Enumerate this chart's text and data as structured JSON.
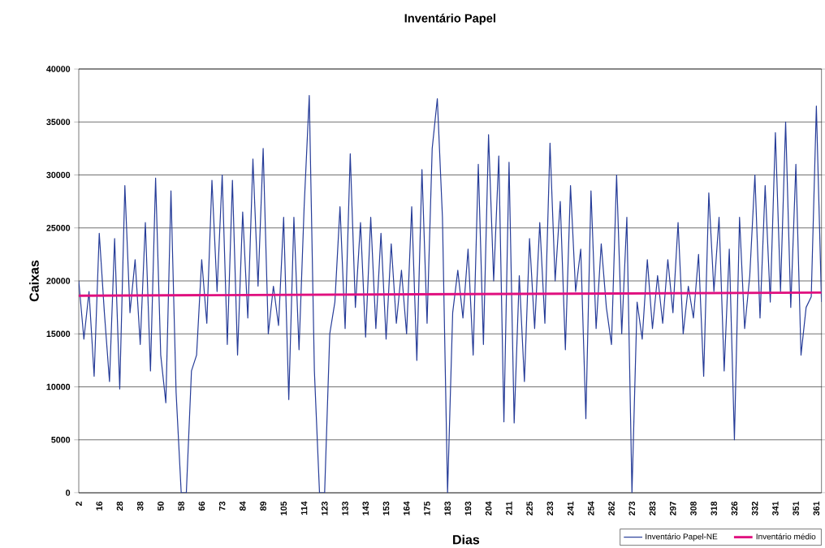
{
  "chart_data": {
    "type": "line",
    "title": "Inventário Papel",
    "xlabel": "Dias",
    "ylabel": "Caixas",
    "categories": [
      "2",
      null,
      null,
      null,
      "16",
      null,
      null,
      null,
      "28",
      null,
      null,
      null,
      "38",
      null,
      null,
      null,
      "50",
      null,
      null,
      null,
      "58",
      null,
      null,
      null,
      "66",
      null,
      null,
      null,
      "73",
      null,
      null,
      null,
      "84",
      null,
      null,
      null,
      "89",
      null,
      null,
      null,
      "105",
      null,
      null,
      null,
      "114",
      null,
      null,
      null,
      "123",
      null,
      null,
      null,
      "133",
      null,
      null,
      null,
      "143",
      null,
      null,
      null,
      "153",
      null,
      null,
      null,
      "164",
      null,
      null,
      null,
      "175",
      null,
      null,
      null,
      "183",
      null,
      null,
      null,
      "193",
      null,
      null,
      null,
      "204",
      null,
      null,
      null,
      "211",
      null,
      null,
      null,
      "225",
      null,
      null,
      null,
      "233",
      null,
      null,
      null,
      "241",
      null,
      null,
      null,
      "254",
      null,
      null,
      null,
      "262",
      null,
      null,
      null,
      "273",
      null,
      null,
      null,
      "283",
      null,
      null,
      null,
      "297",
      null,
      null,
      null,
      "308",
      null,
      null,
      null,
      "318",
      null,
      null,
      null,
      "326",
      null,
      null,
      null,
      "332",
      null,
      null,
      null,
      "341",
      null,
      null,
      null,
      "351",
      null,
      null,
      null,
      "361",
      null
    ],
    "series": [
      {
        "name": "Inventário Papel-NE",
        "color": "#263c98",
        "values": [
          20000,
          14500,
          19000,
          11000,
          24500,
          17000,
          10500,
          24000,
          9800,
          29000,
          17000,
          22000,
          14000,
          25500,
          11500,
          29700,
          13000,
          8500,
          28500,
          9500,
          0,
          0,
          11500,
          13000,
          22000,
          16000,
          29500,
          19000,
          30000,
          14000,
          29500,
          13000,
          26500,
          16500,
          31500,
          19500,
          32500,
          15000,
          19500,
          15800,
          26000,
          8800,
          26000,
          13500,
          27000,
          37500,
          11500,
          0,
          0,
          15000,
          18000,
          27000,
          15500,
          32000,
          17500,
          25500,
          14700,
          26000,
          15500,
          24500,
          14500,
          23500,
          16000,
          21000,
          15000,
          27000,
          12500,
          30500,
          16000,
          32500,
          37200,
          26000,
          0,
          17000,
          21000,
          16500,
          23000,
          13000,
          31000,
          14000,
          33800,
          20000,
          31800,
          6700,
          31200,
          6600,
          20500,
          10500,
          24000,
          15500,
          25500,
          16000,
          33000,
          20000,
          27500,
          13500,
          29000,
          19000,
          23000,
          7000,
          28500,
          15500,
          23500,
          17500,
          14000,
          30000,
          15000,
          26000,
          0,
          18000,
          14500,
          22000,
          15500,
          20500,
          16000,
          22000,
          17000,
          25500,
          15000,
          19500,
          16500,
          22500,
          11000,
          28300,
          19000,
          26000,
          11500,
          23000,
          5000,
          26000,
          15500,
          20500,
          30000,
          16500,
          29000,
          18000,
          34000,
          19000,
          35000,
          17500,
          31000,
          13000,
          17500,
          18500,
          36500,
          18000
        ]
      },
      {
        "name": "Inventário médio",
        "color": "#e0107f",
        "values": [
          18600,
          null,
          null,
          null,
          null,
          null,
          null,
          null,
          null,
          null,
          null,
          null,
          null,
          null,
          null,
          null,
          null,
          null,
          null,
          null,
          null,
          null,
          null,
          null,
          null,
          null,
          null,
          null,
          null,
          null,
          null,
          null,
          null,
          null,
          null,
          null,
          null,
          null,
          null,
          null,
          null,
          null,
          null,
          null,
          null,
          null,
          null,
          null,
          null,
          null,
          null,
          null,
          null,
          null,
          null,
          null,
          null,
          null,
          null,
          null,
          null,
          null,
          null,
          null,
          null,
          null,
          null,
          null,
          null,
          null,
          null,
          null,
          null,
          null,
          null,
          null,
          null,
          null,
          null,
          null,
          null,
          null,
          null,
          null,
          null,
          null,
          null,
          null,
          null,
          null,
          null,
          null,
          null,
          null,
          null,
          null,
          null,
          null,
          null,
          null,
          null,
          null,
          null,
          null,
          null,
          null,
          null,
          null,
          null,
          null,
          null,
          null,
          null,
          null,
          null,
          null,
          null,
          null,
          null,
          null,
          null,
          null,
          null,
          null,
          null,
          null,
          null,
          null,
          null,
          null,
          null,
          null,
          null,
          null,
          null,
          null,
          null,
          null,
          null,
          null,
          null,
          null,
          null,
          null,
          null,
          18900
        ]
      }
    ],
    "ylim": [
      0,
      40000
    ],
    "yticks": [
      0,
      5000,
      10000,
      15000,
      20000,
      25000,
      30000,
      35000,
      40000
    ],
    "grid": "y",
    "legend": "bottom right",
    "marker": "none",
    "line_style": "solid"
  }
}
